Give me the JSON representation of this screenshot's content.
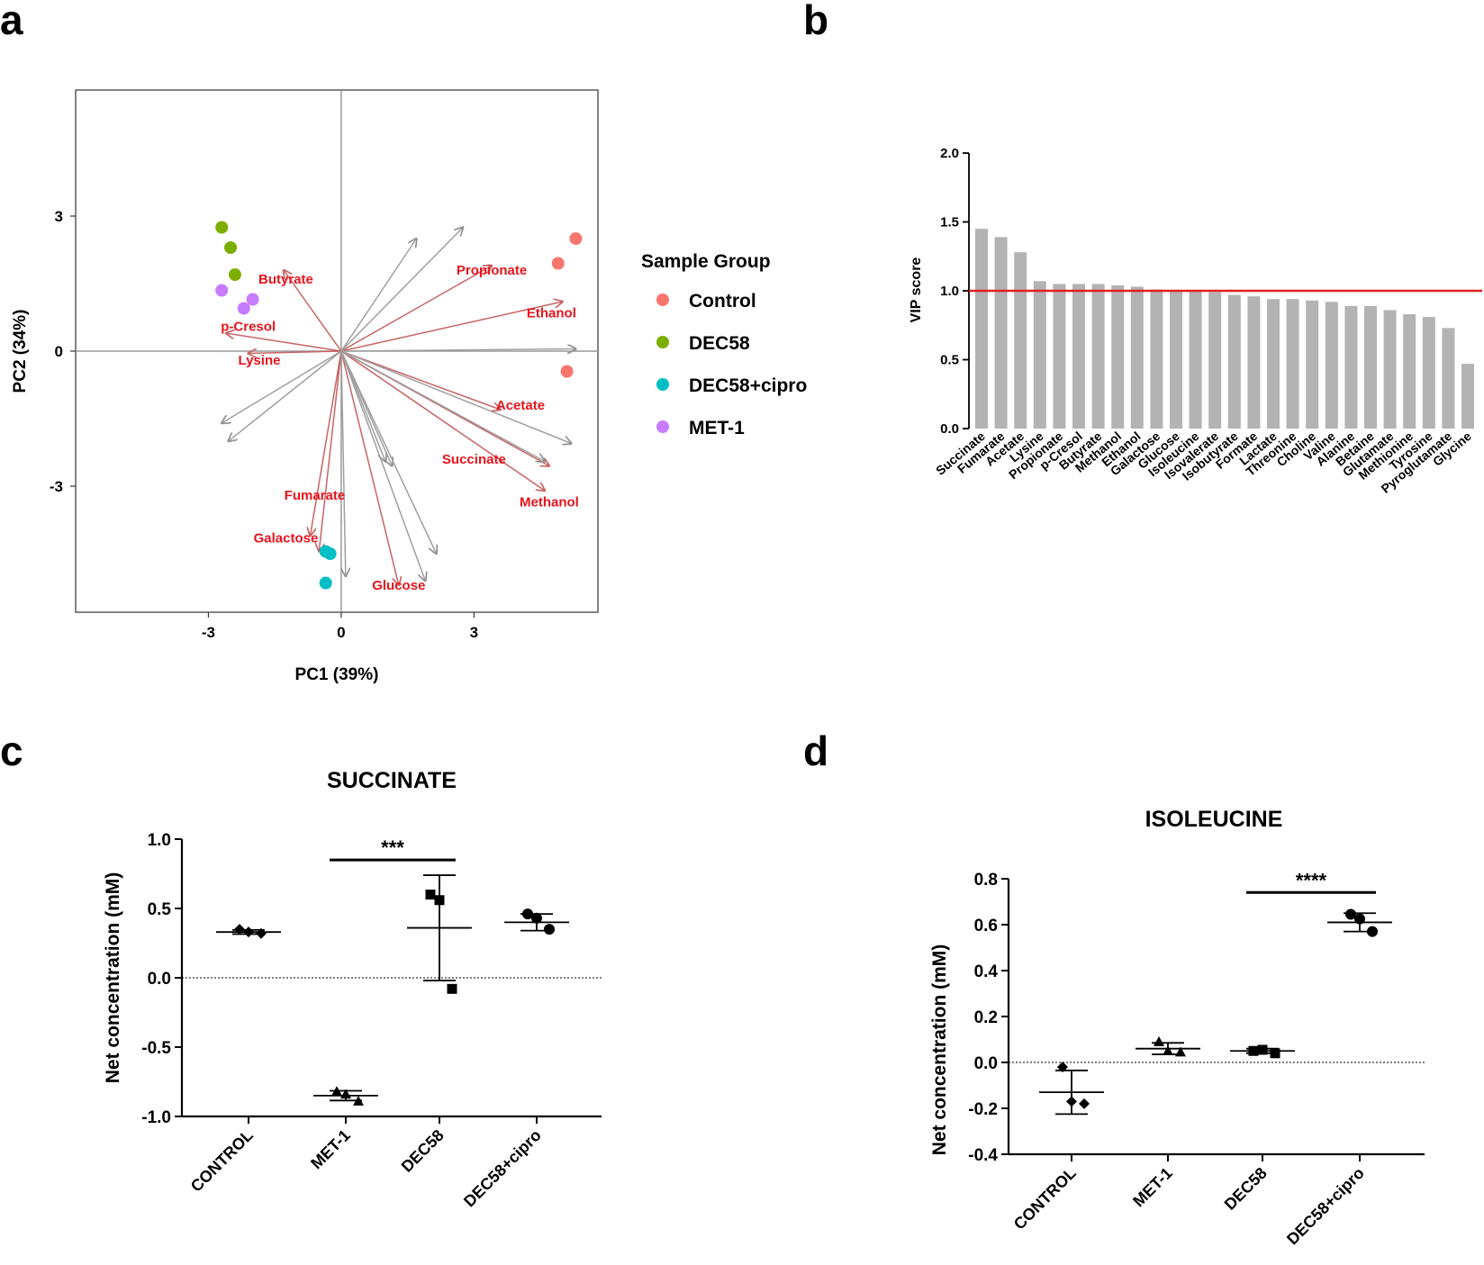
{
  "panels": {
    "a": "a",
    "b": "b",
    "c": "c",
    "d": "d"
  },
  "chart_data": [
    {
      "id": "pca",
      "type": "scatter",
      "title": "",
      "xlabel": "PC1 (39%)",
      "ylabel": "PC2 (34%)",
      "xlim": [
        -6,
        5.8
      ],
      "ylim": [
        -5.8,
        5.8
      ],
      "xticks": [
        "-3",
        "0",
        "3"
      ],
      "yticks": [
        "3",
        "0",
        "-3"
      ],
      "xtick_values": [
        -3,
        0,
        3
      ],
      "ytick_values": [
        3,
        0,
        -3
      ],
      "grid": false,
      "legend_title": "Sample Group",
      "legend_position": "right",
      "groups": [
        {
          "name": "Control",
          "color": "#f8766d",
          "points": [
            [
              5.3,
              2.5
            ],
            [
              4.9,
              1.95
            ],
            [
              5.1,
              -0.45
            ]
          ]
        },
        {
          "name": "DEC58",
          "color": "#7cae00",
          "points": [
            [
              -2.7,
              2.75
            ],
            [
              -2.5,
              2.3
            ],
            [
              -2.4,
              1.7
            ]
          ]
        },
        {
          "name": "DEC58+cipro",
          "color": "#00bfc4",
          "points": [
            [
              -0.35,
              -4.45
            ],
            [
              -0.25,
              -4.5
            ],
            [
              -0.35,
              -5.15
            ]
          ]
        },
        {
          "name": "MET-1",
          "color": "#c77cff",
          "points": [
            [
              -2.7,
              1.35
            ],
            [
              -2.2,
              0.95
            ],
            [
              -2.0,
              1.15
            ]
          ]
        }
      ],
      "loadings": [
        {
          "name": "Butyrate",
          "x": -1.3,
          "y": 1.8,
          "color": "red",
          "lx": -1.25,
          "ly": 1.6
        },
        {
          "name": "Propionate",
          "x": 3.4,
          "y": 1.9,
          "color": "red",
          "lx": 3.4,
          "ly": 1.8
        },
        {
          "name": "Ethanol",
          "x": 5.0,
          "y": 1.1,
          "color": "red",
          "lx": 4.75,
          "ly": 0.85
        },
        {
          "name": "p-Cresol",
          "x": -2.6,
          "y": 0.4,
          "color": "red",
          "lx": -2.1,
          "ly": 0.55
        },
        {
          "name": "Lysine",
          "x": -2.1,
          "y": -0.05,
          "color": "red",
          "lx": -1.85,
          "ly": -0.2
        },
        {
          "name": "Acetate",
          "x": 3.6,
          "y": -1.3,
          "color": "red",
          "lx": 4.05,
          "ly": -1.2
        },
        {
          "name": "Succinate",
          "x": 4.7,
          "y": -2.55,
          "color": "red",
          "lx": 3.0,
          "ly": -2.4
        },
        {
          "name": "Fumarate",
          "x": -0.7,
          "y": -4.1,
          "color": "red",
          "lx": -0.6,
          "ly": -3.2
        },
        {
          "name": "Methanol",
          "x": 4.6,
          "y": -3.1,
          "color": "red",
          "lx": 4.7,
          "ly": -3.35
        },
        {
          "name": "Galactose",
          "x": -0.5,
          "y": -4.45,
          "color": "red",
          "lx": -1.25,
          "ly": -4.15
        },
        {
          "name": "Glucose",
          "x": 1.3,
          "y": -5.2,
          "color": "red",
          "lx": 1.3,
          "ly": -5.2
        },
        {
          "name": "",
          "x": 1.7,
          "y": 2.5,
          "color": "gray"
        },
        {
          "name": "",
          "x": 2.75,
          "y": 2.75,
          "color": "gray"
        },
        {
          "name": "",
          "x": 5.3,
          "y": 0.05,
          "color": "gray"
        },
        {
          "name": "",
          "x": 5.2,
          "y": -2.05,
          "color": "gray"
        },
        {
          "name": "",
          "x": 4.6,
          "y": -2.45,
          "color": "gray"
        },
        {
          "name": "",
          "x": -2.7,
          "y": -1.6,
          "color": "gray"
        },
        {
          "name": "",
          "x": -2.55,
          "y": -2.0,
          "color": "gray"
        },
        {
          "name": "",
          "x": 1.15,
          "y": -2.55,
          "color": "gray"
        },
        {
          "name": "",
          "x": 1.0,
          "y": -2.45,
          "color": "gray"
        },
        {
          "name": "",
          "x": 2.15,
          "y": -4.5,
          "color": "gray"
        },
        {
          "name": "",
          "x": 1.9,
          "y": -5.1,
          "color": "gray"
        },
        {
          "name": "",
          "x": 0.1,
          "y": -5.0,
          "color": "gray"
        }
      ]
    },
    {
      "id": "vip",
      "type": "bar",
      "title": "",
      "xlabel": "",
      "ylabel": "VIP score",
      "ylim": [
        0,
        2.0
      ],
      "yticks": [
        "0.0",
        "0.5",
        "1.0",
        "1.5",
        "2.0"
      ],
      "ytick_values": [
        0,
        0.5,
        1.0,
        1.5,
        2.0
      ],
      "threshold": 1.0,
      "categories": [
        "Succinate",
        "Fumarate",
        "Acetate",
        "Lysine",
        "Propionate",
        "p-Cresol",
        "Butyrate",
        "Methanol",
        "Ethanol",
        "Galactose",
        "Glucose",
        "Isoleucine",
        "Isovalerate",
        "Isobutyrate",
        "Formate",
        "Lactate",
        "Threonine",
        "Choline",
        "Valine",
        "Alanine",
        "Betaine",
        "Glutamate",
        "Methionine",
        "Tyrosine",
        "Pyroglutamate",
        "Glycine"
      ],
      "values": [
        1.45,
        1.39,
        1.28,
        1.07,
        1.05,
        1.05,
        1.05,
        1.04,
        1.03,
        1.01,
        1.0,
        1.0,
        0.99,
        0.97,
        0.96,
        0.94,
        0.94,
        0.93,
        0.92,
        0.89,
        0.89,
        0.86,
        0.83,
        0.81,
        0.73,
        0.47
      ]
    },
    {
      "id": "succinate",
      "type": "scatter",
      "title": "SUCCINATE",
      "xlabel": "",
      "ylabel": "Net concentration (mM)",
      "ylim": [
        -1.0,
        1.0
      ],
      "yticks": [
        "1.0",
        "0.5",
        "0.0",
        "-0.5",
        "-1.0"
      ],
      "ytick_values": [
        1.0,
        0.5,
        0.0,
        -0.5,
        -1.0
      ],
      "categories": [
        "CONTROL",
        "MET-1",
        "DEC58",
        "DEC58+cipro"
      ],
      "markers": [
        "diamond",
        "triangle",
        "square",
        "circle"
      ],
      "series": [
        {
          "name": "CONTROL",
          "values": [
            0.35,
            0.33,
            0.32
          ],
          "mean": 0.33,
          "sd": 0.015
        },
        {
          "name": "MET-1",
          "values": [
            -0.82,
            -0.84,
            -0.89
          ],
          "mean": -0.85,
          "sd": 0.035
        },
        {
          "name": "DEC58",
          "values": [
            0.6,
            0.56,
            -0.08
          ],
          "mean": 0.36,
          "sd": 0.38
        },
        {
          "name": "DEC58+cipro",
          "values": [
            0.46,
            0.43,
            0.35
          ],
          "mean": 0.4,
          "sd": 0.06
        }
      ],
      "significance": {
        "label": "***",
        "from": 1,
        "to": 2,
        "y": 0.85
      }
    },
    {
      "id": "isoleucine",
      "type": "scatter",
      "title": "ISOLEUCINE",
      "xlabel": "",
      "ylabel": "Net concentration (mM)",
      "ylim": [
        -0.4,
        0.8
      ],
      "yticks": [
        "0.8",
        "0.6",
        "0.4",
        "0.2",
        "0.0",
        "-0.2",
        "-0.4"
      ],
      "ytick_values": [
        0.8,
        0.6,
        0.4,
        0.2,
        0.0,
        -0.2,
        -0.4
      ],
      "categories": [
        "CONTROL",
        "MET-1",
        "DEC58",
        "DEC58+cipro"
      ],
      "markers": [
        "diamond",
        "triangle",
        "square",
        "circle"
      ],
      "series": [
        {
          "name": "CONTROL",
          "values": [
            -0.02,
            -0.17,
            -0.18
          ],
          "mean": -0.13,
          "sd": 0.095
        },
        {
          "name": "MET-1",
          "values": [
            0.09,
            0.05,
            0.045
          ],
          "mean": 0.06,
          "sd": 0.025
        },
        {
          "name": "DEC58",
          "values": [
            0.05,
            0.055,
            0.04
          ],
          "mean": 0.05,
          "sd": 0.01
        },
        {
          "name": "DEC58+cipro",
          "values": [
            0.645,
            0.625,
            0.57
          ],
          "mean": 0.61,
          "sd": 0.04
        }
      ],
      "significance": {
        "label": "****",
        "from": 2,
        "to": 3,
        "y": 0.74
      }
    }
  ]
}
